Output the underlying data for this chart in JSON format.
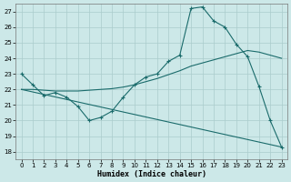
{
  "xlabel": "Humidex (Indice chaleur)",
  "background_color": "#cce8e8",
  "grid_color": "#aacccc",
  "line_color": "#1a6b6b",
  "xlim": [
    -0.5,
    23.5
  ],
  "ylim": [
    17.5,
    27.5
  ],
  "xticks": [
    0,
    1,
    2,
    3,
    4,
    5,
    6,
    7,
    8,
    9,
    10,
    11,
    12,
    13,
    14,
    15,
    16,
    17,
    18,
    19,
    20,
    21,
    22,
    23
  ],
  "yticks": [
    18,
    19,
    20,
    21,
    22,
    23,
    24,
    25,
    26,
    27
  ],
  "line1_x": [
    0,
    1,
    2,
    3,
    4,
    5,
    6,
    7,
    8,
    9,
    10,
    11,
    12,
    13,
    14,
    15,
    16,
    17,
    18,
    19,
    20,
    21,
    22,
    23
  ],
  "line1_y": [
    23.0,
    22.3,
    21.6,
    21.8,
    21.5,
    20.9,
    20.0,
    20.2,
    20.6,
    21.5,
    22.3,
    22.8,
    23.0,
    23.8,
    24.2,
    27.2,
    27.3,
    26.4,
    26.0,
    24.9,
    24.1,
    22.2,
    20.0,
    18.3
  ],
  "line2_x": [
    0,
    1,
    2,
    3,
    4,
    5,
    6,
    7,
    8,
    9,
    10,
    11,
    12,
    13,
    14,
    15,
    16,
    17,
    18,
    19,
    20,
    21,
    22,
    23
  ],
  "line2_y": [
    22.0,
    22.0,
    21.95,
    21.9,
    21.9,
    21.9,
    21.95,
    22.0,
    22.05,
    22.15,
    22.3,
    22.5,
    22.7,
    22.95,
    23.2,
    23.5,
    23.7,
    23.9,
    24.1,
    24.3,
    24.5,
    24.4,
    24.2,
    24.0
  ],
  "line3_x": [
    0,
    23
  ],
  "line3_y": [
    22.0,
    18.3
  ]
}
